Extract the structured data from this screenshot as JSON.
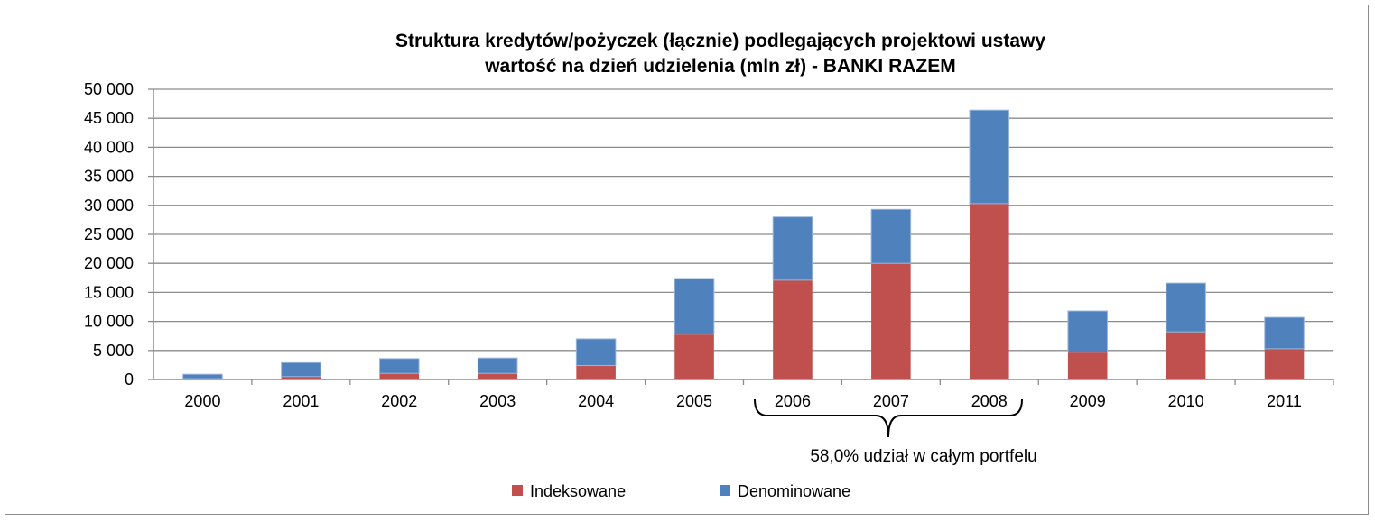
{
  "chart_data": {
    "type": "bar",
    "stacked": true,
    "title": [
      "Struktura kredytów/pożyczek (łącznie) podlegających projektowi ustawy",
      "wartość na dzień udzielenia (mln zł) - BANKI RAZEM"
    ],
    "xlabel": "",
    "ylabel": "",
    "ylim": [
      0,
      50000
    ],
    "yticks": [
      0,
      5000,
      10000,
      15000,
      20000,
      25000,
      30000,
      35000,
      40000,
      45000,
      50000
    ],
    "ytick_labels": [
      "0",
      "5 000",
      "10 000",
      "15 000",
      "20 000",
      "25 000",
      "30 000",
      "35 000",
      "40 000",
      "45 000",
      "50 000"
    ],
    "grid": true,
    "categories": [
      "2000",
      "2001",
      "2002",
      "2003",
      "2004",
      "2005",
      "2006",
      "2007",
      "2008",
      "2009",
      "2010",
      "2011"
    ],
    "series": [
      {
        "name": "Indeksowane",
        "color": "#c0504d",
        "values": [
          150,
          500,
          1050,
          1050,
          2400,
          7800,
          17100,
          20000,
          30300,
          4700,
          8200,
          5300
        ]
      },
      {
        "name": "Denominowane",
        "color": "#4f81bd",
        "values": [
          750,
          2400,
          2550,
          2650,
          4600,
          9600,
          10900,
          9300,
          16100,
          7100,
          8400,
          5400
        ]
      }
    ],
    "annotation": {
      "text": "58,0% udział w całym portfelu",
      "span": [
        "2006",
        "2008"
      ]
    },
    "legend_position": "bottom"
  }
}
